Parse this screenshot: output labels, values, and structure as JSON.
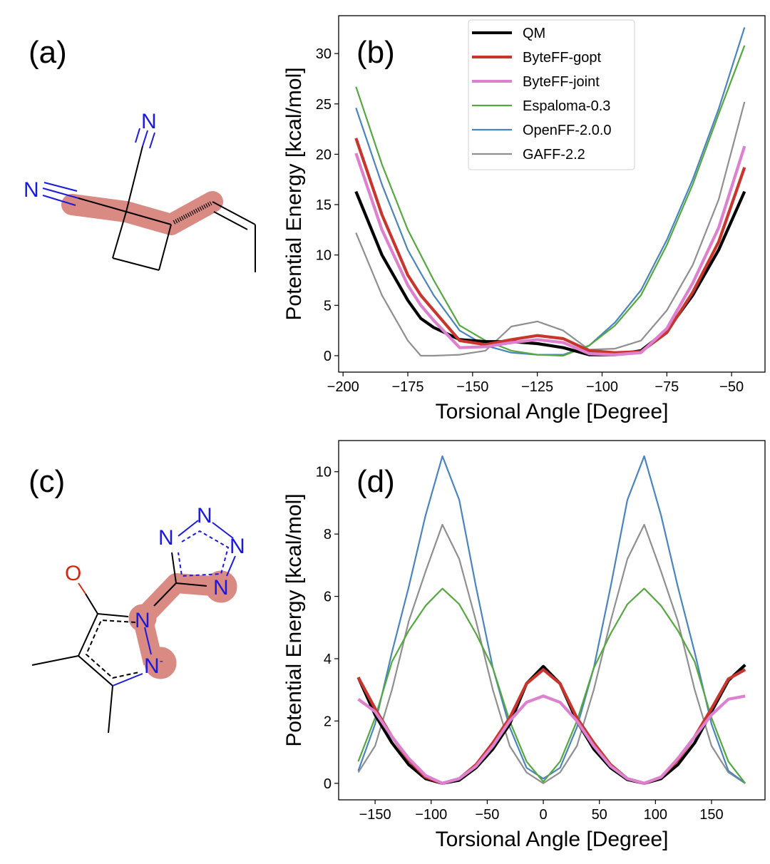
{
  "panels": {
    "a": "(a)",
    "b": "(b)",
    "c": "(c)",
    "d": "(d)"
  },
  "molecule_a": {
    "atoms": [
      "N",
      "N"
    ],
    "highlight_color": "#d98a82",
    "n_color": "#1a1adc"
  },
  "molecule_c": {
    "atoms": [
      "O",
      "N",
      "N",
      "-",
      "N",
      "N",
      "N",
      "N"
    ],
    "highlight_color": "#d98a82",
    "n_color": "#1a1adc",
    "o_color": "#d4290f"
  },
  "legend": [
    {
      "label": "QM",
      "color": "#000000"
    },
    {
      "label": "ByteFF-gopt",
      "color": "#c8352c"
    },
    {
      "label": "ByteFF-joint",
      "color": "#dd80d0"
    },
    {
      "label": "Espaloma-0.3",
      "color": "#55a83f"
    },
    {
      "label": "OpenFF-2.0.0",
      "color": "#4a84bf"
    },
    {
      "label": "GAFF-2.2",
      "color": "#8f8f8f"
    }
  ],
  "chart_data": [
    {
      "panel": "b",
      "type": "line",
      "xlabel": "Torsional Angle [Degree]",
      "ylabel": "Potential Energy [kcal/mol]",
      "xlim": [
        -201.7,
        -37.1
      ],
      "ylim": [
        -1.63,
        33.76
      ],
      "xticks": [
        -200,
        -175,
        -150,
        -125,
        -100,
        -75,
        -50
      ],
      "xtick_labels": [
        "−200",
        "−175",
        "−150",
        "−125",
        "−100",
        "−75",
        "−50"
      ],
      "yticks": [
        0,
        5,
        10,
        15,
        20,
        25,
        30
      ],
      "ytick_labels": [
        "0",
        "5",
        "10",
        "15",
        "20",
        "25",
        "30"
      ],
      "legend_position": "top-center",
      "grid": false,
      "x": [
        -195,
        -185,
        -175,
        -170,
        -165,
        -155,
        -145,
        -135,
        -125,
        -115,
        -105,
        -95,
        -85,
        -75,
        -65,
        -55,
        -45
      ],
      "series": [
        {
          "name": "QM",
          "values": [
            16.3,
            10.0,
            5.5,
            3.7,
            2.8,
            1.6,
            1.4,
            1.4,
            1.2,
            0.8,
            0.1,
            0.1,
            0.5,
            2.5,
            6.0,
            10.5,
            16.3
          ]
        },
        {
          "name": "ByteFF-gopt",
          "values": [
            21.6,
            14.0,
            8.0,
            6.0,
            4.5,
            1.5,
            1.1,
            1.6,
            2.0,
            1.7,
            0.5,
            0.3,
            0.4,
            2.3,
            6.3,
            11.3,
            18.7
          ]
        },
        {
          "name": "ByteFF-joint",
          "values": [
            20.1,
            12.5,
            7.0,
            5.0,
            3.5,
            0.8,
            0.9,
            1.3,
            1.6,
            1.3,
            0.2,
            0.1,
            0.3,
            2.7,
            7.2,
            12.7,
            20.8
          ]
        },
        {
          "name": "Espaloma-0.3",
          "values": [
            26.7,
            19.0,
            12.5,
            10.0,
            7.5,
            3.0,
            1.5,
            0.5,
            0.1,
            0.0,
            1.0,
            3.0,
            6.0,
            11.0,
            17.0,
            24.0,
            30.8
          ]
        },
        {
          "name": "OpenFF-2.0.0",
          "values": [
            24.6,
            17.0,
            10.5,
            8.2,
            6.0,
            2.5,
            1.0,
            0.3,
            0.1,
            0.1,
            1.0,
            3.3,
            6.5,
            11.5,
            17.5,
            24.5,
            32.6
          ]
        },
        {
          "name": "GAFF-2.2",
          "values": [
            12.2,
            6.0,
            1.5,
            0.0,
            0.0,
            0.1,
            0.5,
            2.9,
            3.4,
            2.5,
            0.6,
            0.7,
            1.5,
            4.5,
            9.0,
            15.5,
            25.2
          ]
        }
      ]
    },
    {
      "panel": "d",
      "type": "line",
      "xlabel": "Torsional Angle [Degree]",
      "ylabel": "Potential Energy [kcal/mol]",
      "xlim": [
        -182.5,
        197.7
      ],
      "ylim": [
        -0.53,
        11.0
      ],
      "xticks": [
        -150,
        -100,
        -50,
        0,
        50,
        100,
        150
      ],
      "xtick_labels": [
        "−150",
        "−100",
        "−50",
        "0",
        "50",
        "100",
        "150"
      ],
      "yticks": [
        0,
        2,
        4,
        6,
        8,
        10
      ],
      "ytick_labels": [
        "0",
        "2",
        "4",
        "6",
        "8",
        "10"
      ],
      "grid": false,
      "x": [
        -165,
        -150,
        -135,
        -120,
        -105,
        -90,
        -75,
        -60,
        -45,
        -30,
        -15,
        0,
        15,
        30,
        45,
        60,
        75,
        90,
        105,
        120,
        135,
        150,
        165,
        180
      ],
      "series": [
        {
          "name": "QM",
          "values": [
            3.4,
            2.2,
            1.3,
            0.6,
            0.15,
            0.0,
            0.1,
            0.5,
            1.1,
            1.9,
            3.2,
            3.75,
            3.2,
            2.0,
            1.1,
            0.5,
            0.12,
            0.0,
            0.15,
            0.6,
            1.3,
            2.3,
            3.3,
            3.8
          ]
        },
        {
          "name": "ByteFF-gopt",
          "values": [
            3.4,
            2.4,
            1.5,
            0.75,
            0.2,
            0.0,
            0.15,
            0.6,
            1.3,
            2.1,
            3.2,
            3.65,
            3.2,
            2.1,
            1.3,
            0.6,
            0.15,
            0.0,
            0.2,
            0.75,
            1.5,
            2.4,
            3.35,
            3.65
          ]
        },
        {
          "name": "ByteFF-joint",
          "values": [
            2.7,
            2.3,
            1.5,
            0.8,
            0.25,
            0.0,
            0.15,
            0.55,
            1.2,
            2.0,
            2.6,
            2.8,
            2.6,
            2.0,
            1.2,
            0.55,
            0.15,
            0.0,
            0.2,
            0.8,
            1.5,
            2.2,
            2.7,
            2.8
          ]
        },
        {
          "name": "Espaloma-0.3",
          "values": [
            0.7,
            2.1,
            3.9,
            4.9,
            5.7,
            6.25,
            5.75,
            4.8,
            3.7,
            2.0,
            0.7,
            0.05,
            0.7,
            2.0,
            3.7,
            4.8,
            5.75,
            6.25,
            5.7,
            4.9,
            3.9,
            2.1,
            0.7,
            0.0
          ]
        },
        {
          "name": "OpenFF-2.0.0",
          "values": [
            0.4,
            1.9,
            4.2,
            6.3,
            8.6,
            10.5,
            9.1,
            6.3,
            3.7,
            1.8,
            0.5,
            0.15,
            0.5,
            1.8,
            3.7,
            6.3,
            9.1,
            10.5,
            8.6,
            6.3,
            4.2,
            1.9,
            0.4,
            0.0
          ]
        },
        {
          "name": "GAFF-2.2",
          "values": [
            0.35,
            1.2,
            3.0,
            5.2,
            6.8,
            8.3,
            7.2,
            5.2,
            3.0,
            1.2,
            0.35,
            0.0,
            0.35,
            1.2,
            3.0,
            5.2,
            7.2,
            8.3,
            6.8,
            5.2,
            3.0,
            1.2,
            0.35,
            0.0
          ]
        }
      ]
    }
  ]
}
